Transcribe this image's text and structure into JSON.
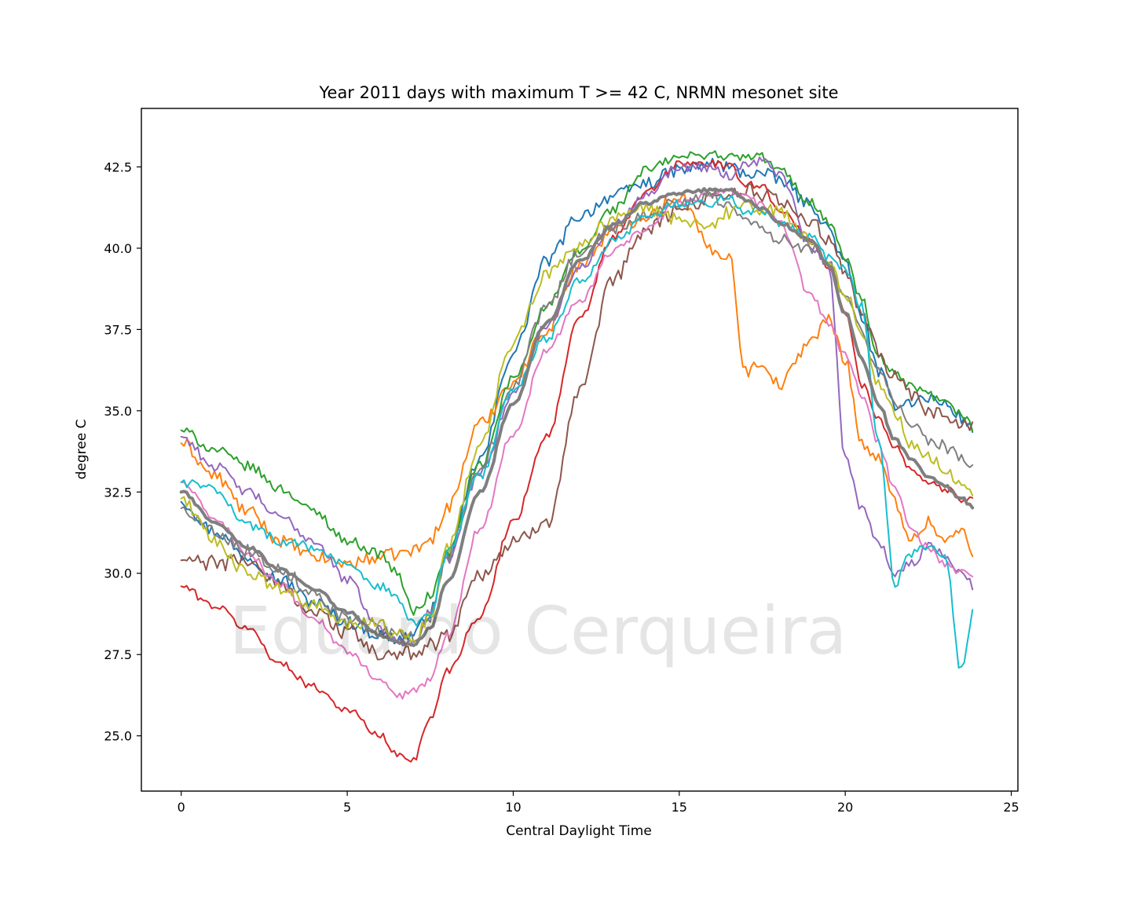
{
  "chart_data": {
    "type": "line",
    "title": "Year 2011 days with maximum T >= 42 C, NRMN mesonet site",
    "xlabel": "Central Daylight Time",
    "ylabel": "degree C",
    "watermark": "Eduardo Cerqueira",
    "xlim": [
      -1.2,
      25.2
    ],
    "ylim": [
      23.3,
      44.3
    ],
    "xticks": [
      0,
      5,
      10,
      15,
      20,
      25
    ],
    "yticks": [
      25.0,
      27.5,
      30.0,
      32.5,
      35.0,
      37.5,
      40.0,
      42.5
    ],
    "xtick_labels": [
      "0",
      "5",
      "10",
      "15",
      "20",
      "25"
    ],
    "ytick_labels": [
      "25.0",
      "27.5",
      "30.0",
      "32.5",
      "35.0",
      "37.5",
      "40.0",
      "42.5"
    ],
    "grid": false,
    "legend": "none",
    "x": [
      0,
      1,
      2,
      3,
      4,
      5,
      6,
      6.5,
      7,
      7.5,
      8,
      9,
      10,
      11,
      12,
      13,
      14,
      15,
      16,
      16.5,
      17,
      17.5,
      18,
      19,
      19.5,
      20,
      20.5,
      21,
      21.5,
      22,
      22.5,
      23,
      23.5,
      23.9
    ],
    "series": [
      {
        "color": "#1f77b4",
        "width": 2,
        "noise": 0.2,
        "values": [
          32.2,
          31.3,
          30.5,
          29.8,
          29.1,
          28.5,
          28.1,
          28.0,
          28.1,
          28.8,
          30.5,
          33.5,
          36.8,
          39.6,
          41.0,
          41.6,
          42.0,
          42.4,
          42.6,
          42.5,
          42.3,
          42.3,
          42.1,
          41.3,
          40.6,
          39.5,
          37.9,
          36.2,
          35.2,
          35.3,
          35.4,
          35.2,
          34.8,
          34.3
        ]
      },
      {
        "color": "#ff7f0e",
        "width": 2,
        "noise": 0.2,
        "values": [
          34.0,
          33.0,
          31.9,
          31.0,
          30.5,
          30.3,
          30.5,
          30.6,
          30.7,
          31.0,
          32.0,
          34.6,
          35.9,
          37.5,
          39.5,
          40.5,
          41.0,
          41.6,
          39.9,
          39.8,
          36.2,
          36.5,
          35.8,
          37.2,
          37.8,
          36.6,
          34.0,
          33.5,
          32.2,
          31.0,
          31.6,
          31.0,
          31.3,
          30.5
        ]
      },
      {
        "color": "#2ca02c",
        "width": 2,
        "noise": 0.15,
        "values": [
          34.4,
          33.8,
          33.3,
          32.6,
          31.9,
          31.0,
          30.6,
          30.0,
          28.8,
          29.3,
          30.6,
          33.3,
          36.0,
          38.2,
          39.9,
          41.2,
          42.4,
          42.8,
          42.9,
          42.8,
          42.8,
          42.8,
          42.4,
          41.4,
          40.8,
          39.7,
          38.4,
          36.6,
          36.1,
          35.7,
          35.5,
          35.2,
          34.9,
          34.4
        ]
      },
      {
        "color": "#d62728",
        "width": 2,
        "noise": 0.12,
        "values": [
          29.6,
          29.0,
          28.3,
          27.2,
          26.5,
          25.8,
          25.0,
          24.4,
          24.3,
          25.5,
          27.0,
          28.7,
          31.6,
          34.2,
          37.8,
          40.3,
          41.7,
          42.6,
          42.6,
          42.5,
          42.0,
          41.9,
          41.2,
          40.2,
          39.4,
          38.0,
          35.8,
          34.8,
          33.9,
          33.2,
          32.8,
          32.6,
          32.3,
          32.4
        ]
      },
      {
        "color": "#9467bd",
        "width": 2,
        "noise": 0.15,
        "values": [
          34.2,
          33.3,
          32.5,
          31.7,
          31.0,
          29.8,
          28.3,
          27.9,
          27.9,
          28.8,
          30.4,
          33.1,
          35.5,
          37.6,
          39.4,
          40.7,
          41.7,
          42.5,
          42.5,
          42.2,
          42.6,
          42.7,
          42.3,
          40.0,
          39.4,
          33.6,
          32.0,
          31.0,
          30.0,
          30.3,
          30.8,
          30.6,
          30.0,
          29.6
        ]
      },
      {
        "color": "#8c564b",
        "width": 2,
        "noise": 0.25,
        "values": [
          30.4,
          30.3,
          30.4,
          29.6,
          28.8,
          28.2,
          27.5,
          27.4,
          27.6,
          27.8,
          28.1,
          30.0,
          30.9,
          31.6,
          35.5,
          39.0,
          40.6,
          41.2,
          41.6,
          41.7,
          41.8,
          41.6,
          41.5,
          40.8,
          40.2,
          39.2,
          38.0,
          36.8,
          36.0,
          35.4,
          35.0,
          34.8,
          34.6,
          34.4
        ]
      },
      {
        "color": "#e377c2",
        "width": 2,
        "noise": 0.12,
        "values": [
          32.8,
          31.7,
          30.6,
          29.6,
          28.6,
          27.6,
          26.7,
          26.2,
          26.4,
          26.7,
          28.1,
          31.4,
          34.3,
          36.9,
          38.4,
          39.9,
          40.6,
          41.4,
          41.7,
          41.8,
          41.6,
          41.3,
          40.8,
          38.5,
          37.7,
          36.7,
          35.5,
          34.0,
          32.6,
          31.3,
          30.8,
          30.3,
          30.0,
          29.8
        ]
      },
      {
        "color": "#7f7f7f",
        "width": 2,
        "noise": 0.2,
        "values": [
          32.0,
          31.3,
          30.7,
          30.1,
          29.4,
          28.6,
          28.2,
          28.1,
          28.0,
          28.7,
          30.5,
          33.2,
          35.8,
          38.2,
          39.9,
          40.6,
          41.1,
          41.4,
          41.6,
          41.3,
          41.0,
          40.6,
          40.3,
          40.0,
          39.6,
          38.7,
          37.4,
          36.2,
          35.2,
          34.6,
          34.1,
          33.9,
          33.6,
          33.2
        ]
      },
      {
        "color": "#bcbd22",
        "width": 2,
        "noise": 0.2,
        "values": [
          32.3,
          31.0,
          30.0,
          29.5,
          29.0,
          28.4,
          28.5,
          28.1,
          27.9,
          28.7,
          30.8,
          33.9,
          37.1,
          39.2,
          40.1,
          40.9,
          41.2,
          40.9,
          40.7,
          41.1,
          41.3,
          41.2,
          41.1,
          40.2,
          39.5,
          38.6,
          37.4,
          35.9,
          34.9,
          34.0,
          33.6,
          33.2,
          32.8,
          32.3
        ]
      },
      {
        "color": "#17becf",
        "width": 2,
        "noise": 0.15,
        "values": [
          32.8,
          32.6,
          31.5,
          31.0,
          30.8,
          30.2,
          29.6,
          29.3,
          28.4,
          28.8,
          30.6,
          33.0,
          35.6,
          37.2,
          39.0,
          40.2,
          40.9,
          41.4,
          41.4,
          41.6,
          41.1,
          41.2,
          40.8,
          40.3,
          39.7,
          39.4,
          38.2,
          34.1,
          29.7,
          30.6,
          30.8,
          30.5,
          27.0,
          29.0
        ]
      },
      {
        "color": "#7f7f7f",
        "width": 4,
        "noise": 0.06,
        "values": [
          32.5,
          31.6,
          30.8,
          30.1,
          29.5,
          28.8,
          28.1,
          27.9,
          27.8,
          28.3,
          29.7,
          32.5,
          35.2,
          37.7,
          39.6,
          40.7,
          41.4,
          41.7,
          41.8,
          41.8,
          41.5,
          41.2,
          40.8,
          40.2,
          39.5,
          38.0,
          36.6,
          35.2,
          34.1,
          33.5,
          33.0,
          32.7,
          32.3,
          32.0
        ]
      }
    ]
  }
}
